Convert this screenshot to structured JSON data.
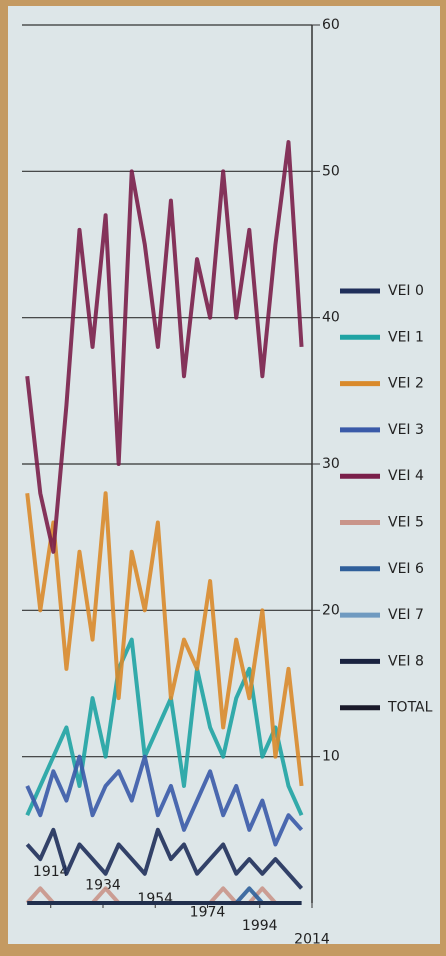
{
  "chart_data": {
    "type": "line",
    "x": [
      1905,
      1910,
      1915,
      1920,
      1925,
      1930,
      1935,
      1940,
      1945,
      1950,
      1955,
      1960,
      1965,
      1970,
      1975,
      1980,
      1985,
      1990,
      1995,
      2000,
      2005,
      2010
    ],
    "xlim": [
      1903,
      2014
    ],
    "xticks": [
      1914,
      1934,
      1954,
      1974,
      1994,
      2014
    ],
    "ylim": [
      0,
      60
    ],
    "yticks": [
      10,
      20,
      30,
      40,
      50,
      60
    ],
    "grid": true,
    "series": [
      {
        "name": "VEI 0",
        "color": "#1f2f5a",
        "values": [
          4,
          3,
          5,
          2,
          4,
          3,
          2,
          4,
          3,
          2,
          5,
          3,
          4,
          2,
          3,
          4,
          2,
          3,
          2,
          3,
          2,
          1
        ]
      },
      {
        "name": "VEI 1",
        "color": "#1fa3a3",
        "values": [
          6,
          8,
          10,
          12,
          8,
          14,
          10,
          16,
          18,
          10,
          12,
          14,
          8,
          16,
          12,
          10,
          14,
          16,
          10,
          12,
          8,
          6
        ]
      },
      {
        "name": "VEI 2",
        "color": "#d98a2b",
        "values": [
          28,
          20,
          26,
          16,
          24,
          18,
          28,
          14,
          24,
          20,
          26,
          14,
          18,
          16,
          22,
          12,
          18,
          14,
          20,
          10,
          16,
          8
        ]
      },
      {
        "name": "VEI 3",
        "color": "#3a5aa8",
        "values": [
          8,
          6,
          9,
          7,
          10,
          6,
          8,
          9,
          7,
          10,
          6,
          8,
          5,
          7,
          9,
          6,
          8,
          5,
          7,
          4,
          6,
          5
        ]
      },
      {
        "name": "VEI 4",
        "color": "#7a1f4a",
        "values": [
          36,
          28,
          24,
          34,
          46,
          38,
          47,
          30,
          50,
          45,
          38,
          48,
          36,
          44,
          40,
          50,
          40,
          46,
          36,
          45,
          52,
          38
        ]
      },
      {
        "name": "VEI 5",
        "color": "#c9958a",
        "values": [
          0,
          1,
          0,
          0,
          0,
          0,
          1,
          0,
          0,
          0,
          0,
          0,
          0,
          0,
          0,
          1,
          0,
          0,
          1,
          0,
          0,
          0
        ]
      },
      {
        "name": "VEI 6",
        "color": "#2f5f9a",
        "values": [
          0,
          0,
          0,
          0,
          0,
          0,
          0,
          0,
          0,
          0,
          0,
          0,
          0,
          0,
          0,
          0,
          0,
          1,
          0,
          0,
          0,
          0
        ]
      },
      {
        "name": "VEI 7",
        "color": "#6f9ac0",
        "values": [
          0,
          0,
          0,
          0,
          0,
          0,
          0,
          0,
          0,
          0,
          0,
          0,
          0,
          0,
          0,
          0,
          0,
          0,
          0,
          0,
          0,
          0
        ]
      },
      {
        "name": "VEI 8",
        "color": "#1a2340",
        "values": [
          0,
          0,
          0,
          0,
          0,
          0,
          0,
          0,
          0,
          0,
          0,
          0,
          0,
          0,
          0,
          0,
          0,
          0,
          0,
          0,
          0,
          0
        ]
      },
      {
        "name": "TOTAL",
        "color": "#1a1a2a"
      }
    ]
  }
}
